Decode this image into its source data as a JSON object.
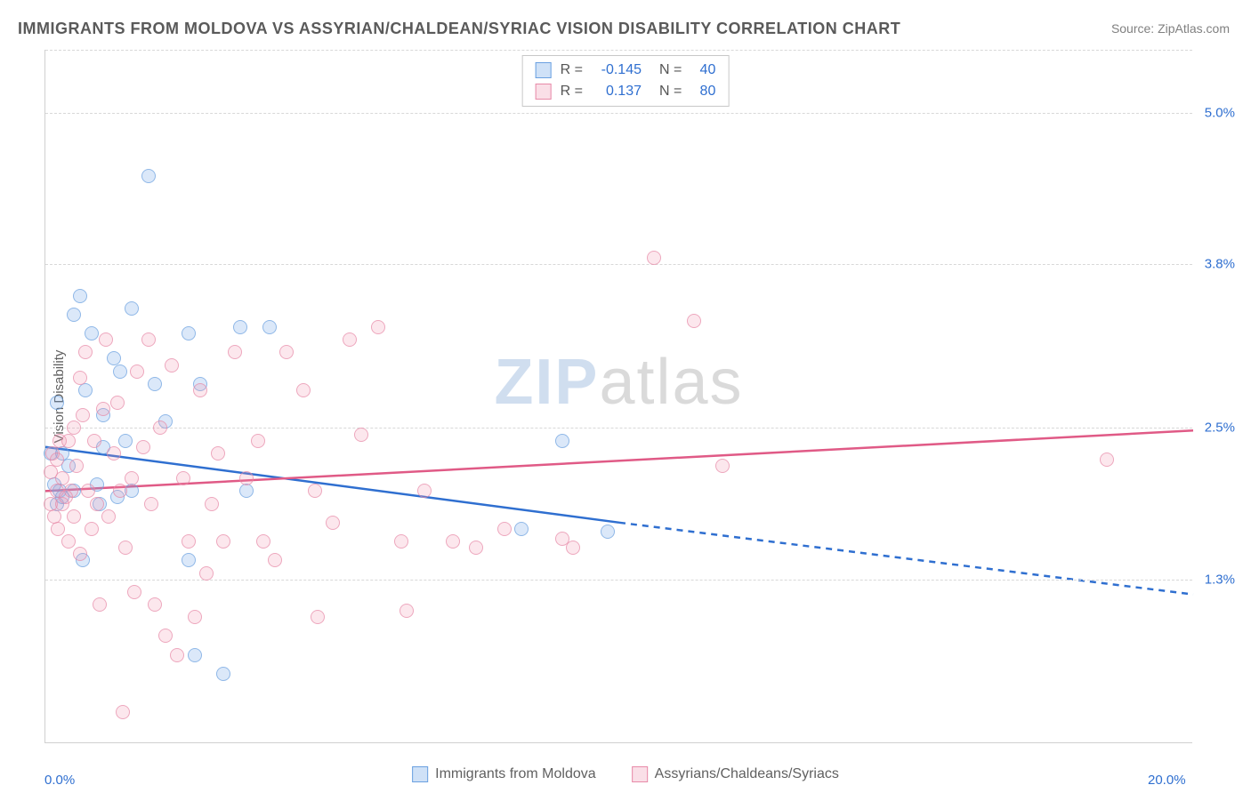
{
  "title": "IMMIGRANTS FROM MOLDOVA VS ASSYRIAN/CHALDEAN/SYRIAC VISION DISABILITY CORRELATION CHART",
  "source": "Source: ZipAtlas.com",
  "ylabel": "Vision Disability",
  "watermark_a": "ZIP",
  "watermark_b": "atlas",
  "chart": {
    "type": "scatter",
    "background_color": "#ffffff",
    "grid_color": "#d8d8d8",
    "axis_color": "#d0d0d0",
    "xlim": [
      0,
      20
    ],
    "ylim": [
      0,
      5.5
    ],
    "x_ticks": [
      {
        "value": 0.0,
        "label": "0.0%"
      },
      {
        "value": 20.0,
        "label": "20.0%"
      }
    ],
    "y_ticks": [
      {
        "value": 1.3,
        "label": "1.3%"
      },
      {
        "value": 2.5,
        "label": "2.5%"
      },
      {
        "value": 3.8,
        "label": "3.8%"
      },
      {
        "value": 5.0,
        "label": "5.0%"
      }
    ],
    "y_gridlines": [
      1.3,
      2.5,
      3.8,
      5.0,
      5.5
    ],
    "series": [
      {
        "name": "Immigrants from Moldova",
        "key": "blue",
        "color_fill": "rgba(118,169,232,0.35)",
        "color_stroke": "#6aa0e0",
        "trend_color": "#2f6fd0",
        "r": "-0.145",
        "n": "40",
        "trend": {
          "x1": 0.0,
          "y1": 2.35,
          "x2": 10.0,
          "y2": 1.75,
          "x_extrap": 20.0,
          "y_extrap": 1.18
        },
        "points": [
          [
            0.1,
            2.3
          ],
          [
            0.15,
            2.05
          ],
          [
            0.2,
            2.7
          ],
          [
            0.2,
            1.9
          ],
          [
            0.25,
            2.0
          ],
          [
            0.3,
            2.3
          ],
          [
            0.3,
            1.95
          ],
          [
            0.4,
            2.2
          ],
          [
            0.5,
            3.4
          ],
          [
            0.5,
            2.0
          ],
          [
            0.6,
            3.55
          ],
          [
            0.65,
            1.45
          ],
          [
            0.7,
            2.8
          ],
          [
            0.8,
            3.25
          ],
          [
            0.9,
            2.05
          ],
          [
            0.95,
            1.9
          ],
          [
            1.0,
            2.6
          ],
          [
            1.0,
            2.35
          ],
          [
            1.2,
            3.05
          ],
          [
            1.25,
            1.95
          ],
          [
            1.3,
            2.95
          ],
          [
            1.4,
            2.4
          ],
          [
            1.5,
            3.45
          ],
          [
            1.5,
            2.0
          ],
          [
            1.8,
            4.5
          ],
          [
            1.9,
            2.85
          ],
          [
            2.1,
            2.55
          ],
          [
            2.5,
            3.25
          ],
          [
            2.5,
            1.45
          ],
          [
            2.6,
            0.7
          ],
          [
            2.7,
            2.85
          ],
          [
            3.1,
            0.55
          ],
          [
            3.4,
            3.3
          ],
          [
            3.5,
            2.0
          ],
          [
            3.9,
            3.3
          ],
          [
            8.3,
            1.7
          ],
          [
            9.0,
            2.4
          ],
          [
            9.8,
            1.68
          ]
        ]
      },
      {
        "name": "Assyrians/Chaldeans/Syriacs",
        "key": "pink",
        "color_fill": "rgba(240,150,175,0.30)",
        "color_stroke": "#e88aa8",
        "trend_color": "#e05a86",
        "r": "0.137",
        "n": "80",
        "trend": {
          "x1": 0.0,
          "y1": 2.0,
          "x2": 20.0,
          "y2": 2.48
        },
        "points": [
          [
            0.1,
            1.9
          ],
          [
            0.1,
            2.15
          ],
          [
            0.12,
            2.3
          ],
          [
            0.15,
            1.8
          ],
          [
            0.2,
            2.0
          ],
          [
            0.2,
            2.25
          ],
          [
            0.22,
            1.7
          ],
          [
            0.25,
            2.4
          ],
          [
            0.3,
            1.9
          ],
          [
            0.3,
            2.1
          ],
          [
            0.35,
            1.95
          ],
          [
            0.4,
            2.4
          ],
          [
            0.4,
            1.6
          ],
          [
            0.45,
            2.0
          ],
          [
            0.5,
            2.5
          ],
          [
            0.5,
            1.8
          ],
          [
            0.55,
            2.2
          ],
          [
            0.6,
            2.9
          ],
          [
            0.6,
            1.5
          ],
          [
            0.65,
            2.6
          ],
          [
            0.7,
            3.1
          ],
          [
            0.75,
            2.0
          ],
          [
            0.8,
            1.7
          ],
          [
            0.85,
            2.4
          ],
          [
            0.9,
            1.9
          ],
          [
            0.95,
            1.1
          ],
          [
            1.0,
            2.65
          ],
          [
            1.05,
            3.2
          ],
          [
            1.1,
            1.8
          ],
          [
            1.2,
            2.3
          ],
          [
            1.25,
            2.7
          ],
          [
            1.3,
            2.0
          ],
          [
            1.35,
            0.25
          ],
          [
            1.4,
            1.55
          ],
          [
            1.5,
            2.1
          ],
          [
            1.55,
            1.2
          ],
          [
            1.6,
            2.95
          ],
          [
            1.7,
            2.35
          ],
          [
            1.8,
            3.2
          ],
          [
            1.85,
            1.9
          ],
          [
            1.9,
            1.1
          ],
          [
            2.0,
            2.5
          ],
          [
            2.1,
            0.85
          ],
          [
            2.2,
            3.0
          ],
          [
            2.3,
            0.7
          ],
          [
            2.4,
            2.1
          ],
          [
            2.5,
            1.6
          ],
          [
            2.6,
            1.0
          ],
          [
            2.7,
            2.8
          ],
          [
            2.8,
            1.35
          ],
          [
            2.9,
            1.9
          ],
          [
            3.0,
            2.3
          ],
          [
            3.1,
            1.6
          ],
          [
            3.3,
            3.1
          ],
          [
            3.5,
            2.1
          ],
          [
            3.7,
            2.4
          ],
          [
            3.8,
            1.6
          ],
          [
            4.0,
            1.45
          ],
          [
            4.2,
            3.1
          ],
          [
            4.5,
            2.8
          ],
          [
            4.7,
            2.0
          ],
          [
            4.75,
            1.0
          ],
          [
            5.0,
            1.75
          ],
          [
            5.3,
            3.2
          ],
          [
            5.5,
            2.45
          ],
          [
            5.8,
            3.3
          ],
          [
            6.2,
            1.6
          ],
          [
            6.3,
            1.05
          ],
          [
            6.6,
            2.0
          ],
          [
            7.1,
            1.6
          ],
          [
            7.5,
            1.55
          ],
          [
            8.0,
            1.7
          ],
          [
            9.0,
            1.62
          ],
          [
            9.2,
            1.55
          ],
          [
            10.6,
            3.85
          ],
          [
            11.3,
            3.35
          ],
          [
            11.8,
            2.2
          ],
          [
            18.5,
            2.25
          ]
        ]
      }
    ]
  },
  "legend_top": [
    {
      "swatch": "blue",
      "r_label": "R =",
      "r_val": "-0.145",
      "n_label": "N =",
      "n_val": "40"
    },
    {
      "swatch": "pink",
      "r_label": "R =",
      "r_val": "0.137",
      "n_label": "N =",
      "n_val": "80"
    }
  ],
  "legend_bottom": [
    {
      "swatch": "blue",
      "label": "Immigrants from Moldova"
    },
    {
      "swatch": "pink",
      "label": "Assyrians/Chaldeans/Syriacs"
    }
  ]
}
